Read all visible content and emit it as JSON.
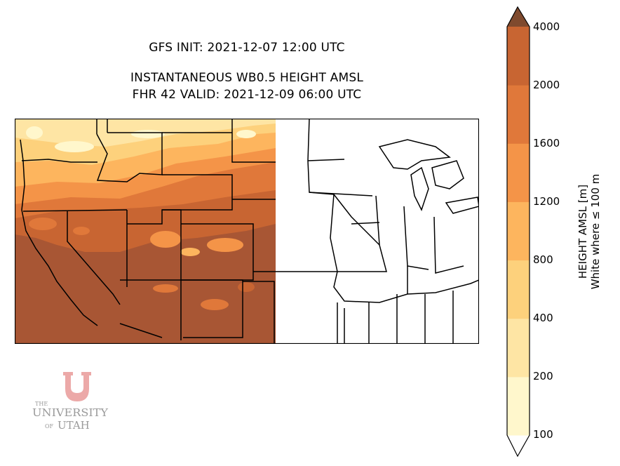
{
  "header": {
    "init_line": "GFS INIT: 2021-12-07 12:00 UTC",
    "product_line": "INSTANTANEOUS WB0.5 HEIGHT AMSL",
    "valid_line": "FHR 42 VALID: 2021-12-09 06:00 UTC"
  },
  "colorbar": {
    "label_line1": "HEIGHT AMSL [m]",
    "label_line2": "White where ≤ 100 m",
    "levels": [
      "100",
      "200",
      "400",
      "800",
      "1200",
      "1600",
      "2000",
      "4000"
    ],
    "colors": [
      "#fff7cc",
      "#fee5a4",
      "#fdd17c",
      "#fdb55e",
      "#f49448",
      "#e0783a",
      "#c86532",
      "#a85634",
      "#7f4a2e"
    ]
  },
  "logo": {
    "the": "THE",
    "university": "UNIVERSITY",
    "of": "OF",
    "utah": "UTAH",
    "color": "#eca9a8"
  },
  "map": {
    "ocean_color": "#ffffff",
    "land_color": "#ffffff",
    "border_color": "#000000"
  }
}
